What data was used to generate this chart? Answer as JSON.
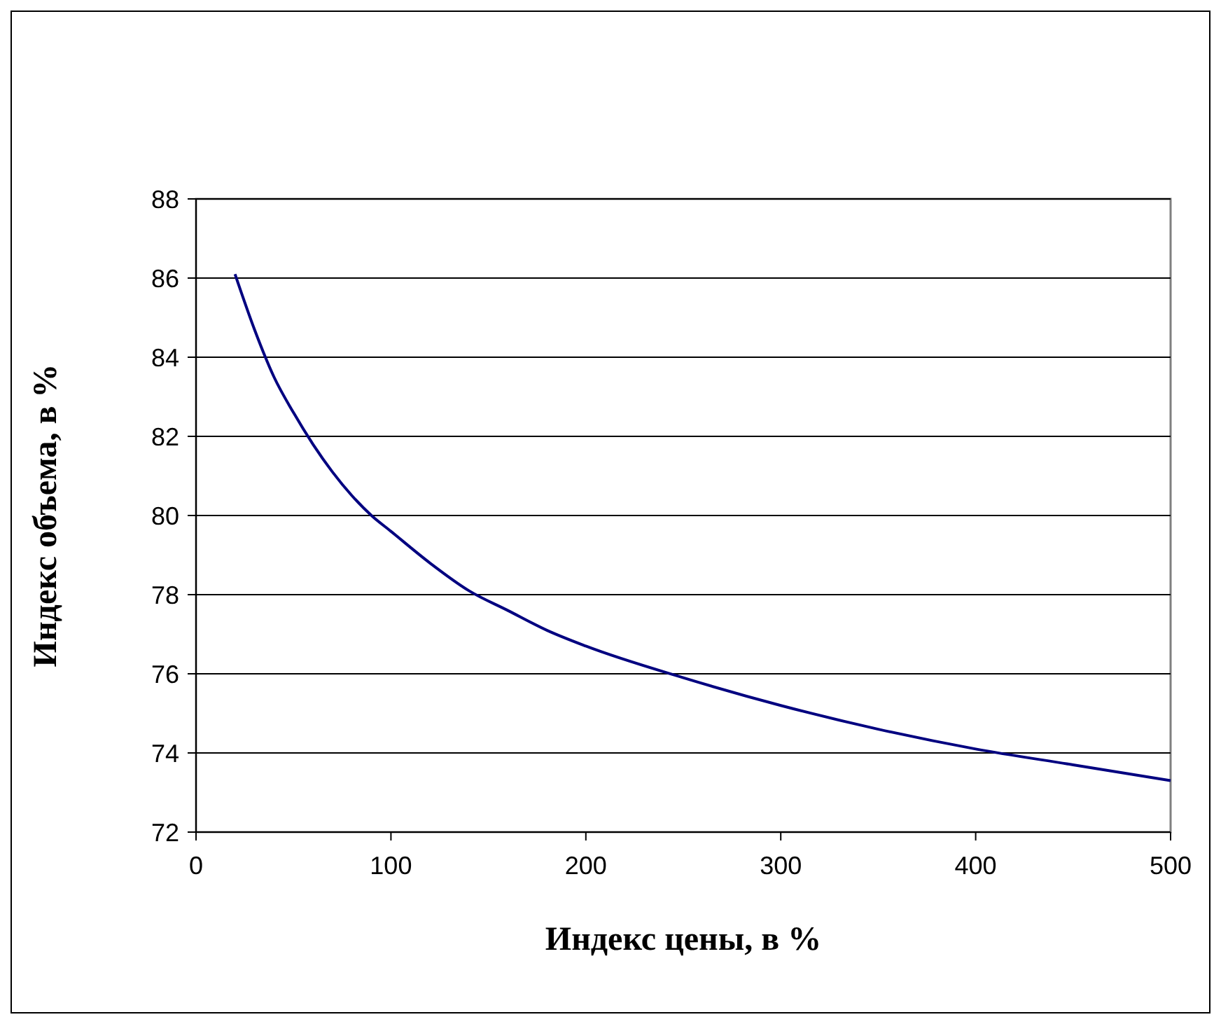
{
  "chart_data": {
    "type": "line",
    "xlabel": "Индекс цены, в %",
    "ylabel": "Индекс объема, в %",
    "x": [
      20,
      30,
      40,
      50,
      60,
      70,
      80,
      90,
      100,
      120,
      140,
      160,
      180,
      200,
      250,
      300,
      350,
      400,
      450,
      500
    ],
    "series": [
      {
        "color": "#000080",
        "values": [
          86.1,
          84.7,
          83.5,
          82.6,
          81.8,
          81.1,
          80.5,
          80.0,
          79.6,
          78.8,
          78.1,
          77.6,
          77.1,
          76.7,
          75.9,
          75.2,
          74.6,
          74.1,
          73.7,
          73.3
        ]
      }
    ],
    "xlim": [
      0,
      500
    ],
    "xticks": [
      0,
      100,
      200,
      300,
      400,
      500
    ],
    "ylim": [
      72,
      88
    ],
    "yticks": [
      72,
      74,
      76,
      78,
      80,
      82,
      84,
      86,
      88
    ],
    "grid": "y",
    "marker": "none",
    "line_style": "solid"
  }
}
